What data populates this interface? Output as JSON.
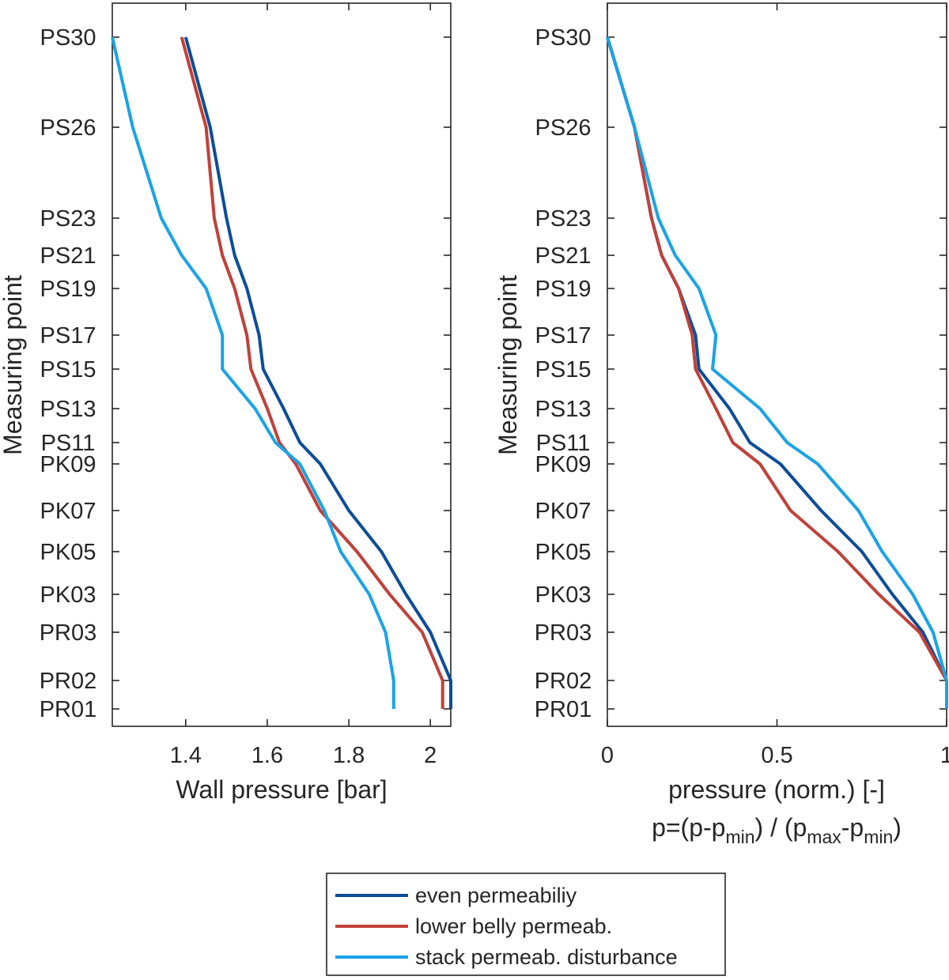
{
  "chart_data": [
    {
      "type": "line",
      "orientation": "vertical-profile",
      "xlabel": "Wall pressure [bar]",
      "ylabel": "Measuring point",
      "xlim": [
        1.22,
        2.05
      ],
      "xticks": [
        "1.4",
        "1.6",
        "1.8",
        "2"
      ],
      "yticks": [
        "PS30",
        "PS26",
        "PS23",
        "PS21",
        "PS19",
        "PS17",
        "PS15",
        "PS13",
        "PS11",
        "PK09",
        "PK07",
        "PK05",
        "PK03",
        "PR03",
        "PR02",
        "PR01"
      ],
      "grid": false,
      "series": [
        {
          "name": "even permeabiliy",
          "color": "#0c4d9a",
          "values": [
            1.4,
            1.46,
            1.5,
            1.52,
            1.55,
            1.58,
            1.59,
            1.64,
            1.68,
            1.73,
            1.8,
            1.88,
            1.94,
            2.0,
            2.05,
            2.05
          ]
        },
        {
          "name": "lower belly permeab.",
          "color": "#c0413a",
          "values": [
            1.39,
            1.45,
            1.47,
            1.49,
            1.52,
            1.55,
            1.56,
            1.6,
            1.63,
            1.67,
            1.73,
            1.82,
            1.9,
            1.98,
            2.03,
            2.03
          ]
        },
        {
          "name": "stack permeab. disturbance",
          "color": "#1aa3e6",
          "values": [
            1.22,
            1.27,
            1.34,
            1.39,
            1.45,
            1.49,
            1.49,
            1.57,
            1.62,
            1.68,
            1.74,
            1.78,
            1.85,
            1.89,
            1.91,
            1.91
          ]
        }
      ]
    },
    {
      "type": "line",
      "orientation": "vertical-profile",
      "xlabel_line1": "pressure (norm.) [-]",
      "xlabel_line2": {
        "p": "p=(p-p",
        "sub1": "min",
        "mid": ") / (p",
        "sub2": "max",
        "mid2": "-p",
        "sub3": "min",
        "end": ")"
      },
      "ylabel": "Measuring point",
      "xlim": [
        0,
        1
      ],
      "xticks": [
        "0",
        "0.5",
        "1"
      ],
      "yticks": [
        "PS30",
        "PS26",
        "PS23",
        "PS21",
        "PS19",
        "PS17",
        "PS15",
        "PS13",
        "PS11",
        "PK09",
        "PK07",
        "PK05",
        "PK03",
        "PR03",
        "PR02",
        "PR01"
      ],
      "grid": false,
      "series": [
        {
          "name": "even permeabiliy",
          "color": "#0c4d9a",
          "values": [
            0.0,
            0.08,
            0.13,
            0.16,
            0.21,
            0.26,
            0.27,
            0.36,
            0.42,
            0.51,
            0.63,
            0.75,
            0.84,
            0.93,
            1.0,
            1.0
          ]
        },
        {
          "name": "lower belly permeab.",
          "color": "#c0413a",
          "values": [
            0.0,
            0.08,
            0.13,
            0.16,
            0.21,
            0.25,
            0.26,
            0.32,
            0.37,
            0.45,
            0.54,
            0.68,
            0.8,
            0.92,
            1.0,
            1.0
          ]
        },
        {
          "name": "stack permeab. disturbance",
          "color": "#1aa3e6",
          "values": [
            0.0,
            0.08,
            0.15,
            0.2,
            0.27,
            0.32,
            0.31,
            0.45,
            0.53,
            0.62,
            0.74,
            0.81,
            0.9,
            0.96,
            1.0,
            1.0
          ]
        }
      ]
    }
  ],
  "legend": {
    "placement": "bottom-center",
    "items": [
      {
        "label": "even permeabiliy",
        "color": "#0c4d9a"
      },
      {
        "label": "lower belly permeab.",
        "color": "#c0413a"
      },
      {
        "label": "stack permeab. disturbance",
        "color": "#1aa3e6"
      }
    ]
  }
}
